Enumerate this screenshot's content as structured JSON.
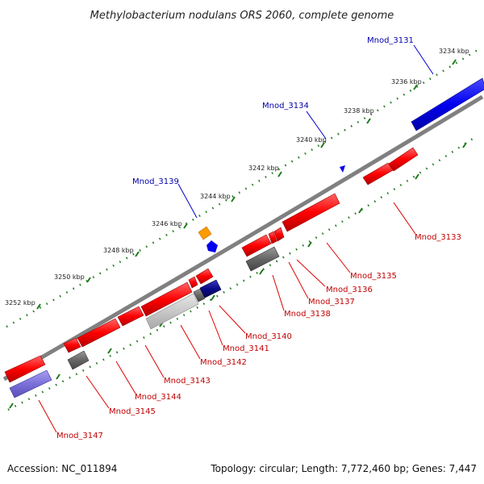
{
  "title": "Methylobacterium nodulans ORS 2060, complete genome",
  "footer": {
    "accession": "Accession: NC_011894",
    "summary": "Topology: circular; Length: 7,772,460 bp; Genes: 7,447"
  },
  "colors": {
    "forward": "#ff0000",
    "reverse": "#e00000",
    "gray": "#666666",
    "lightgray": "#c8c8c8",
    "navy": "#0a0a8a",
    "blue": "#0000ee",
    "purple": "#7b6fd8",
    "orange": "#ff9900",
    "backbone": "#808080",
    "tick": "#1f7a1f"
  },
  "kbp_labels": [
    "3234 kbp",
    "3236 kbp",
    "3238 kbp",
    "3240 kbp",
    "3242 kbp",
    "3244 kbp",
    "3246 kbp",
    "3248 kbp",
    "3250 kbp",
    "3252 kbp"
  ],
  "gene_labels_blue": [
    "Mnod_3131",
    "Mnod_3134",
    "Mnod_3139"
  ],
  "gene_labels_red": [
    "Mnod_3133",
    "Mnod_3135",
    "Mnod_3136",
    "Mnod_3137",
    "Mnod_3138",
    "Mnod_3140",
    "Mnod_3141",
    "Mnod_3142",
    "Mnod_3143",
    "Mnod_3144",
    "Mnod_3145",
    "Mnod_3147"
  ]
}
